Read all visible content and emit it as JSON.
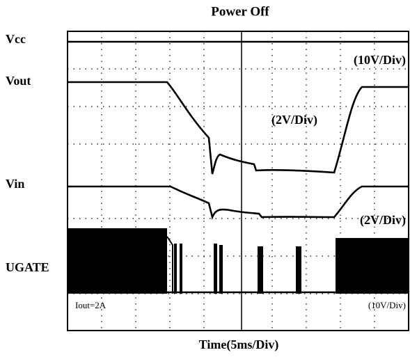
{
  "title": "Power Off",
  "channels": [
    {
      "label": "Vcc",
      "scale": "(10V/Div)"
    },
    {
      "label": "Vout",
      "scale": "(2V/Div)"
    },
    {
      "label": "Vin",
      "scale": "(2V/Div)"
    },
    {
      "label": "UGATE",
      "scale": "(10V/Div)"
    }
  ],
  "note": "Iout=2A",
  "x_label": "Time(5ms/Div)"
}
